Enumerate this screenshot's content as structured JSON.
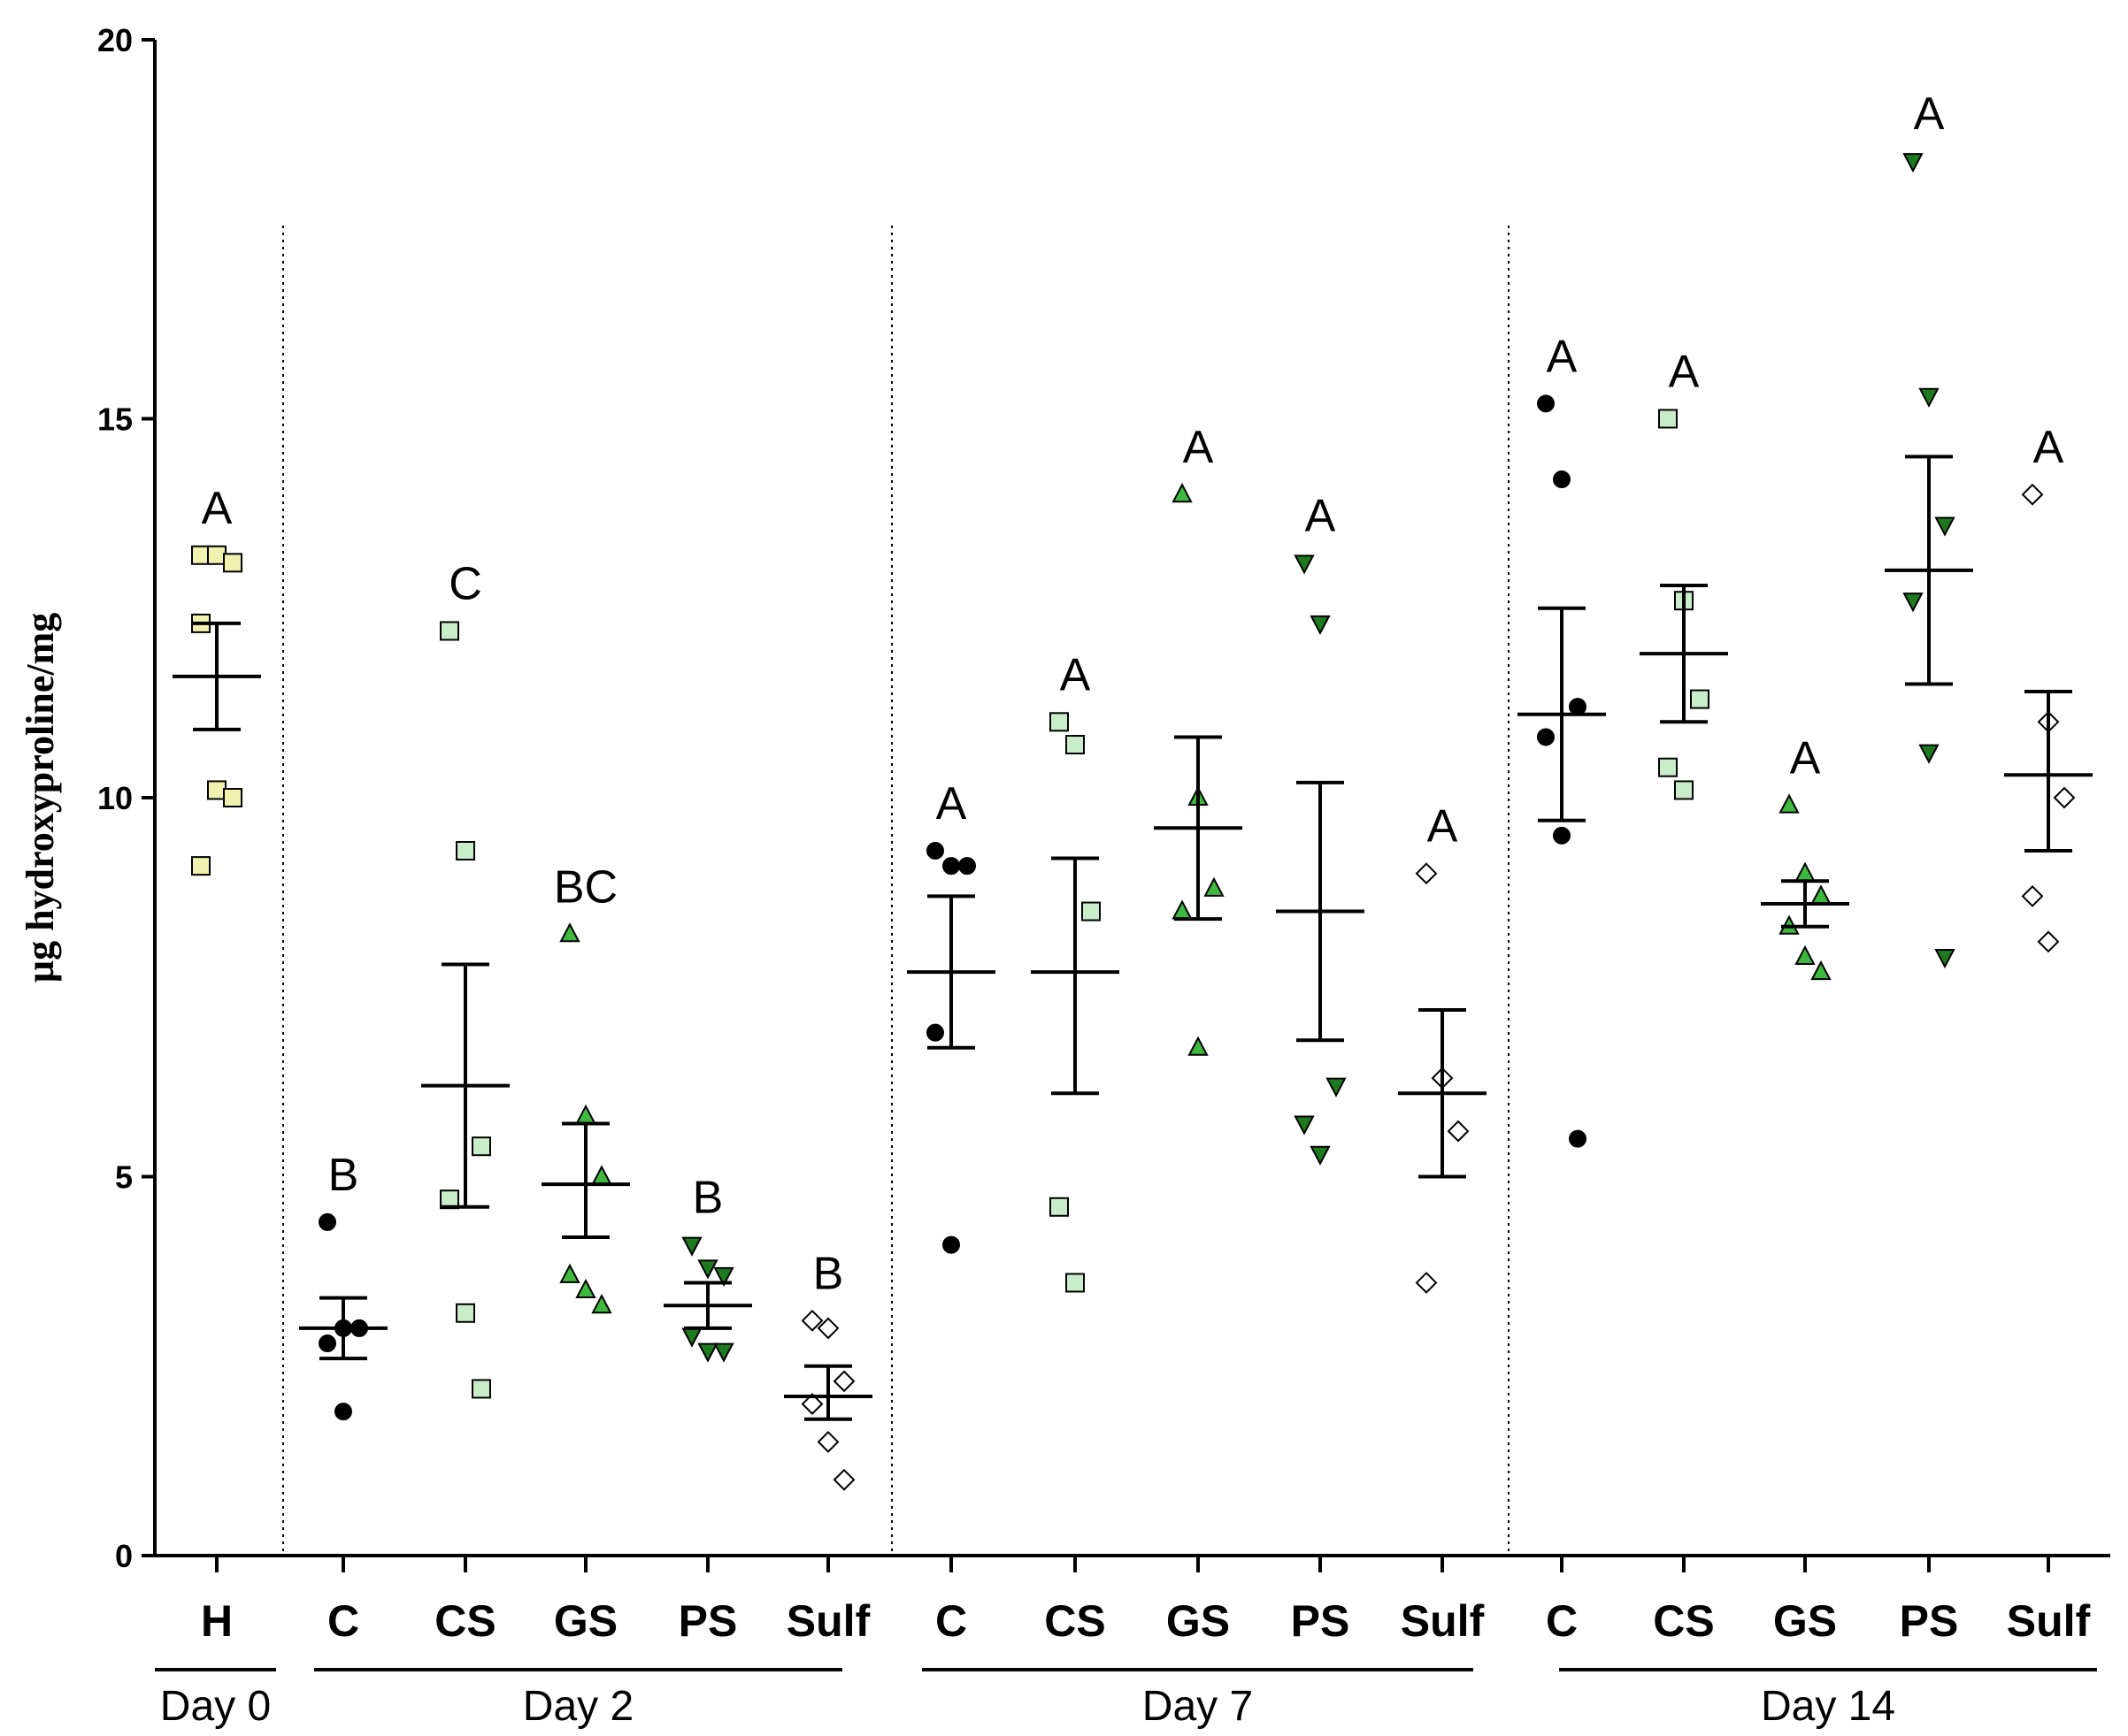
{
  "chart_data": {
    "type": "scatter",
    "title": "",
    "ylabel": "µg hydroxyproline/mg",
    "ylim": [
      0,
      20
    ],
    "yticks": [
      0,
      5,
      10,
      15,
      20
    ],
    "day_labels": [
      "Day 0",
      "Day 2",
      "Day 7",
      "Day 14"
    ],
    "marker_colors": {
      "circle": "#000000",
      "square_h": "#f2f2b0",
      "square": "#c8edc8",
      "triangle_up": "#3fb83f",
      "triangle_down": "#1e7a1e",
      "diamond": "#ffffff"
    },
    "groups": [
      {
        "label": "H",
        "day": "Day 0",
        "marker": "square_h",
        "sig": "A",
        "mean": 11.6,
        "sem_low": 10.9,
        "sem_high": 12.3,
        "values": [
          13.2,
          13.2,
          13.1,
          12.3,
          10.1,
          10.0,
          9.1
        ]
      },
      {
        "label": "C",
        "day": "Day 2",
        "marker": "circle",
        "sig": "B",
        "mean": 3.0,
        "sem_low": 2.6,
        "sem_high": 3.4,
        "values": [
          4.4,
          3.0,
          3.0,
          2.8,
          1.9
        ]
      },
      {
        "label": "CS",
        "day": "Day 2",
        "marker": "square",
        "sig": "C",
        "mean": 6.2,
        "sem_low": 4.6,
        "sem_high": 7.8,
        "values": [
          12.2,
          9.3,
          5.4,
          4.7,
          3.2,
          2.2
        ]
      },
      {
        "label": "GS",
        "day": "Day 2",
        "marker": "triangle_up",
        "sig": "BC",
        "mean": 4.9,
        "sem_low": 4.2,
        "sem_high": 5.7,
        "values": [
          8.2,
          5.8,
          5.0,
          3.7,
          3.5,
          3.3
        ]
      },
      {
        "label": "PS",
        "day": "Day 2",
        "marker": "triangle_down",
        "sig": "B",
        "mean": 3.3,
        "sem_low": 3.0,
        "sem_high": 3.6,
        "values": [
          4.1,
          3.8,
          3.7,
          2.9,
          2.7,
          2.7
        ]
      },
      {
        "label": "Sulf",
        "day": "Day 2",
        "marker": "diamond",
        "sig": "B",
        "mean": 2.1,
        "sem_low": 1.8,
        "sem_high": 2.5,
        "values": [
          3.1,
          3.0,
          2.3,
          2.0,
          1.5,
          1.0
        ]
      },
      {
        "label": "C",
        "day": "Day 7",
        "marker": "circle",
        "sig": "A",
        "mean": 7.7,
        "sem_low": 6.7,
        "sem_high": 8.7,
        "values": [
          9.3,
          9.1,
          9.1,
          6.9,
          4.1
        ]
      },
      {
        "label": "CS",
        "day": "Day 7",
        "marker": "square",
        "sig": "A",
        "mean": 7.7,
        "sem_low": 6.1,
        "sem_high": 9.2,
        "values": [
          11.0,
          10.7,
          8.5,
          4.6,
          3.6
        ]
      },
      {
        "label": "GS",
        "day": "Day 7",
        "marker": "triangle_up",
        "sig": "A",
        "mean": 9.6,
        "sem_low": 8.4,
        "sem_high": 10.8,
        "values": [
          14.0,
          10.0,
          8.8,
          8.5,
          6.7
        ]
      },
      {
        "label": "PS",
        "day": "Day 7",
        "marker": "triangle_down",
        "sig": "A",
        "mean": 8.5,
        "sem_low": 6.8,
        "sem_high": 10.2,
        "values": [
          13.1,
          12.3,
          6.2,
          5.7,
          5.3
        ]
      },
      {
        "label": "Sulf",
        "day": "Day 7",
        "marker": "diamond",
        "sig": "A",
        "mean": 6.1,
        "sem_low": 5.0,
        "sem_high": 7.2,
        "values": [
          9.0,
          6.3,
          5.6,
          3.6
        ]
      },
      {
        "label": "C",
        "day": "Day 14",
        "marker": "circle",
        "sig": "A",
        "mean": 11.1,
        "sem_low": 9.7,
        "sem_high": 12.5,
        "values": [
          15.2,
          14.2,
          11.2,
          10.8,
          9.5,
          5.5
        ]
      },
      {
        "label": "CS",
        "day": "Day 14",
        "marker": "square",
        "sig": "A",
        "mean": 11.9,
        "sem_low": 11.0,
        "sem_high": 12.8,
        "values": [
          15.0,
          12.6,
          11.3,
          10.4,
          10.1
        ]
      },
      {
        "label": "GS",
        "day": "Day 14",
        "marker": "triangle_up",
        "sig": "A",
        "mean": 8.6,
        "sem_low": 8.3,
        "sem_high": 8.9,
        "values": [
          9.9,
          9.0,
          8.7,
          8.3,
          7.9,
          7.7
        ]
      },
      {
        "label": "PS",
        "day": "Day 14",
        "marker": "triangle_down",
        "sig": "A",
        "mean": 13.0,
        "sem_low": 11.5,
        "sem_high": 14.5,
        "values": [
          18.4,
          15.3,
          13.6,
          12.6,
          10.6,
          7.9
        ]
      },
      {
        "label": "Sulf",
        "day": "Day 14",
        "marker": "diamond",
        "sig": "A",
        "mean": 10.3,
        "sem_low": 9.3,
        "sem_high": 11.4,
        "values": [
          14.0,
          11.0,
          10.0,
          8.7,
          8.1
        ]
      }
    ]
  }
}
